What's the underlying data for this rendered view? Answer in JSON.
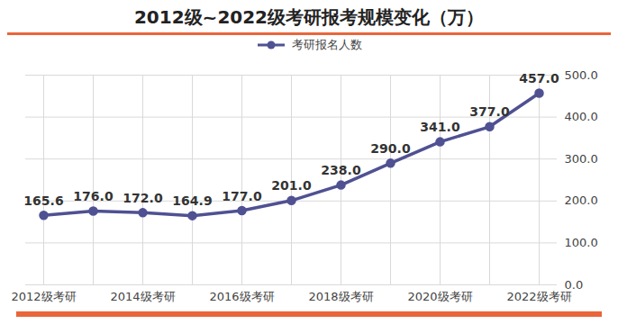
{
  "chart_data": {
    "type": "line",
    "title": "2012级~2022级考研报考规模变化（万）",
    "categories": [
      "2012级考研",
      null,
      "2014级考研",
      null,
      "2016级考研",
      null,
      "2018级考研",
      null,
      "2020级考研",
      null,
      "2022级考研"
    ],
    "series": [
      {
        "name": "考研报名人数",
        "color": "#4f5192",
        "marker": "circle",
        "line_style": "solid",
        "values": [
          165.6,
          176.0,
          172.0,
          164.9,
          177.0,
          201.0,
          238.0,
          290.0,
          341.0,
          377.0,
          457.0
        ],
        "value_labels": [
          "165.6",
          "176.0",
          "172.0",
          "164.9",
          "177.0",
          "201.0",
          "238.0",
          "290.0",
          "341.0",
          "377.0",
          "457.0"
        ]
      }
    ],
    "ylim": [
      0,
      500
    ],
    "yticks": [
      {
        "value": 0,
        "label": "0.0"
      },
      {
        "value": 100,
        "label": "100.0"
      },
      {
        "value": 200,
        "label": "200.0"
      },
      {
        "value": 300,
        "label": "300.0"
      },
      {
        "value": 400,
        "label": "400.0"
      },
      {
        "value": 500,
        "label": "500.0"
      }
    ],
    "grid": true,
    "legend": "top",
    "data_labels": true
  }
}
